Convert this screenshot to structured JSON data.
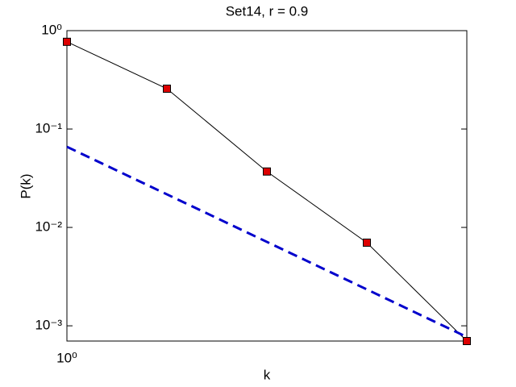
{
  "chart_data": {
    "type": "line",
    "title": "Set14, r = 0.9",
    "xlabel": "k",
    "ylabel": "P(k)",
    "xscale": "log",
    "yscale": "log",
    "xlim": [
      1,
      16
    ],
    "ylim": [
      0.0007,
      1
    ],
    "xticks": [
      {
        "value": 1,
        "label": "10⁰"
      }
    ],
    "yticks": [
      {
        "value": 0.001,
        "label": "10⁻³"
      },
      {
        "value": 0.01,
        "label": "10⁻²"
      },
      {
        "value": 0.1,
        "label": "10⁻¹"
      },
      {
        "value": 1,
        "label": "10⁰"
      }
    ],
    "series": [
      {
        "x": [
          1,
          2,
          4,
          8,
          16
        ],
        "values": [
          0.77,
          0.257,
          0.037,
          0.007,
          0.0007
        ],
        "color": "#000000",
        "marker_color": "#dd0000",
        "dash": "solid"
      },
      {
        "x": [
          1,
          16
        ],
        "values": [
          0.066,
          0.00077
        ],
        "color": "#0000cc",
        "dash": "dashed"
      }
    ]
  }
}
